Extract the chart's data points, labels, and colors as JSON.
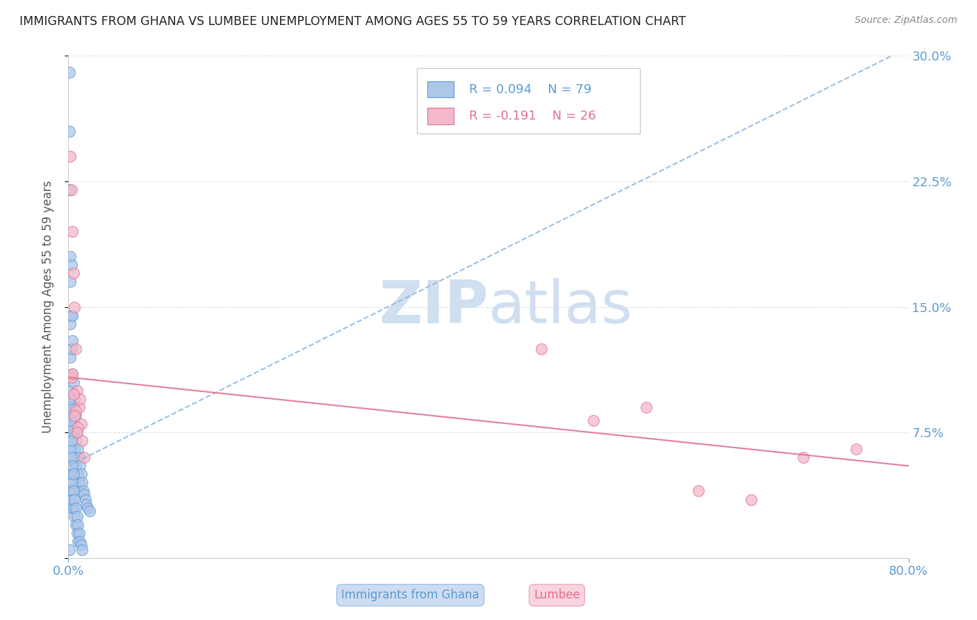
{
  "title": "IMMIGRANTS FROM GHANA VS LUMBEE UNEMPLOYMENT AMONG AGES 55 TO 59 YEARS CORRELATION CHART",
  "source": "Source: ZipAtlas.com",
  "ylabel": "Unemployment Among Ages 55 to 59 years",
  "xmin": 0.0,
  "xmax": 0.8,
  "ymin": 0.0,
  "ymax": 0.3,
  "ghana_R": 0.094,
  "ghana_N": 79,
  "lumbee_R": -0.191,
  "lumbee_N": 26,
  "ghana_color": "#aec6e8",
  "ghana_edge_color": "#5b9bd5",
  "lumbee_color": "#f4b8c8",
  "lumbee_edge_color": "#e07090",
  "ghana_line_color": "#8ab4d8",
  "lumbee_line_color": "#e07090",
  "watermark_color": "#d0dff0",
  "background_color": "#ffffff",
  "grid_color": "#dddddd",
  "title_color": "#222222",
  "axis_label_color": "#5b9bd5",
  "ghana_trend_x": [
    0.0,
    0.8
  ],
  "ghana_trend_y": [
    0.055,
    0.305
  ],
  "lumbee_trend_x": [
    0.0,
    0.8
  ],
  "lumbee_trend_y": [
    0.108,
    0.055
  ],
  "ghana_x": [
    0.001,
    0.001,
    0.001,
    0.002,
    0.002,
    0.002,
    0.002,
    0.003,
    0.003,
    0.003,
    0.003,
    0.004,
    0.004,
    0.004,
    0.004,
    0.005,
    0.005,
    0.005,
    0.006,
    0.006,
    0.006,
    0.007,
    0.007,
    0.007,
    0.008,
    0.008,
    0.009,
    0.009,
    0.01,
    0.01,
    0.011,
    0.011,
    0.012,
    0.013,
    0.014,
    0.015,
    0.016,
    0.017,
    0.018,
    0.02,
    0.001,
    0.001,
    0.001,
    0.002,
    0.002,
    0.002,
    0.003,
    0.003,
    0.003,
    0.004,
    0.004,
    0.005,
    0.005,
    0.006,
    0.006,
    0.007,
    0.007,
    0.008,
    0.008,
    0.009,
    0.009,
    0.01,
    0.011,
    0.012,
    0.013,
    0.001,
    0.002,
    0.003,
    0.004,
    0.005,
    0.001,
    0.002,
    0.003,
    0.001,
    0.002,
    0.001,
    0.002,
    0.001,
    0.001
  ],
  "ghana_y": [
    0.29,
    0.255,
    0.22,
    0.18,
    0.165,
    0.14,
    0.12,
    0.175,
    0.145,
    0.125,
    0.1,
    0.145,
    0.13,
    0.11,
    0.09,
    0.105,
    0.09,
    0.075,
    0.095,
    0.08,
    0.065,
    0.085,
    0.07,
    0.055,
    0.075,
    0.06,
    0.065,
    0.05,
    0.06,
    0.045,
    0.055,
    0.04,
    0.05,
    0.045,
    0.04,
    0.038,
    0.035,
    0.032,
    0.03,
    0.028,
    0.06,
    0.05,
    0.04,
    0.055,
    0.045,
    0.035,
    0.05,
    0.04,
    0.03,
    0.045,
    0.035,
    0.04,
    0.03,
    0.035,
    0.025,
    0.03,
    0.02,
    0.025,
    0.015,
    0.02,
    0.01,
    0.015,
    0.01,
    0.008,
    0.005,
    0.07,
    0.065,
    0.06,
    0.055,
    0.05,
    0.08,
    0.075,
    0.07,
    0.085,
    0.078,
    0.09,
    0.082,
    0.095,
    0.005
  ],
  "lumbee_x": [
    0.002,
    0.003,
    0.004,
    0.005,
    0.006,
    0.007,
    0.008,
    0.01,
    0.011,
    0.012,
    0.013,
    0.015,
    0.003,
    0.005,
    0.007,
    0.009,
    0.45,
    0.5,
    0.55,
    0.6,
    0.65,
    0.7,
    0.75,
    0.004,
    0.006,
    0.008
  ],
  "lumbee_y": [
    0.24,
    0.22,
    0.195,
    0.17,
    0.15,
    0.125,
    0.1,
    0.09,
    0.095,
    0.08,
    0.07,
    0.06,
    0.108,
    0.098,
    0.088,
    0.078,
    0.125,
    0.082,
    0.09,
    0.04,
    0.035,
    0.06,
    0.065,
    0.11,
    0.085,
    0.075
  ]
}
